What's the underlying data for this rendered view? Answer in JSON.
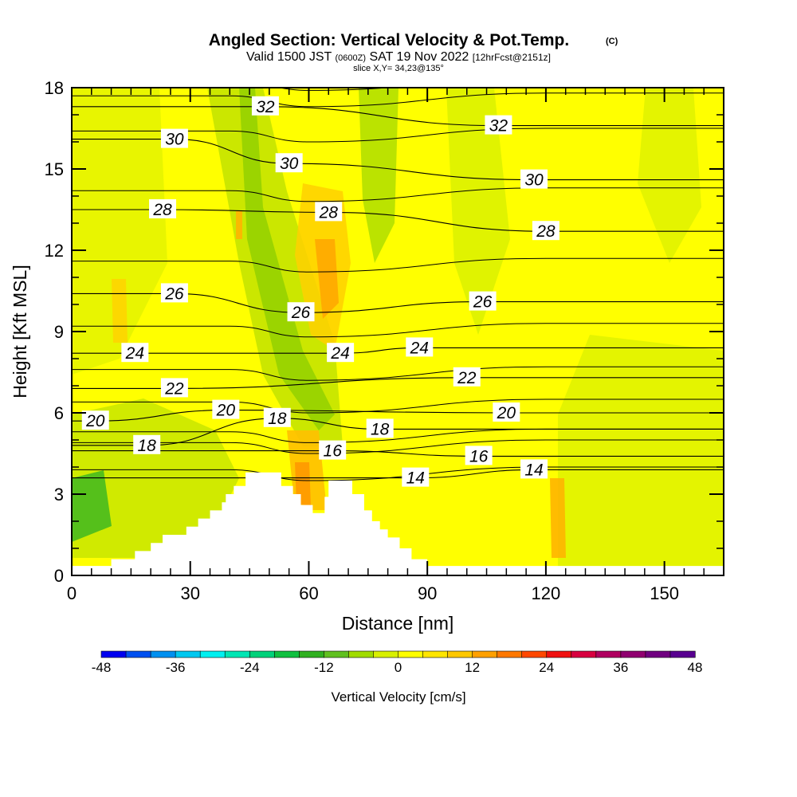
{
  "chart_data": {
    "type": "heatmap",
    "title": "Angled Section: Vertical Velocity & Pot.Temp.",
    "title_mark": "(C)",
    "subtitle_parts": [
      "Valid 1500 JST",
      "(0600Z)",
      "SAT 19 Nov 2022",
      "[12hrFcst@2151z]"
    ],
    "slice_label": "slice X,Y= 34,23@135°",
    "xlabel": "Distance [nm]",
    "ylabel": "Height [Kft MSL]",
    "xlim": [
      0,
      165
    ],
    "ylim": [
      0,
      18
    ],
    "x_ticks": [
      0,
      30,
      60,
      90,
      120,
      150
    ],
    "y_ticks": [
      0,
      3,
      6,
      9,
      12,
      15,
      18
    ],
    "colorbar": {
      "label": "Vertical Velocity [cm/s]",
      "range": [
        -48,
        48
      ],
      "ticks": [
        -48,
        -36,
        -24,
        -12,
        0,
        12,
        24,
        36,
        48
      ],
      "colors": [
        "#0000f0",
        "#0050f0",
        "#0090f0",
        "#00c8f0",
        "#00f0f0",
        "#00e6b4",
        "#00d27a",
        "#10c040",
        "#30b020",
        "#60c020",
        "#a0dc00",
        "#d8f000",
        "#ffff00",
        "#ffe600",
        "#ffc800",
        "#ffa000",
        "#ff7800",
        "#ff4800",
        "#f01010",
        "#d80040",
        "#b00060",
        "#900070",
        "#700080",
        "#580090"
      ]
    },
    "contour_labels": [
      {
        "value": "32",
        "x": 49,
        "y": 17.3
      },
      {
        "value": "32",
        "x": 108,
        "y": 16.6
      },
      {
        "value": "30",
        "x": 26,
        "y": 16.1
      },
      {
        "value": "30",
        "x": 55,
        "y": 15.2
      },
      {
        "value": "30",
        "x": 117,
        "y": 14.6
      },
      {
        "value": "28",
        "x": 23,
        "y": 13.5
      },
      {
        "value": "28",
        "x": 65,
        "y": 13.4
      },
      {
        "value": "28",
        "x": 120,
        "y": 12.7
      },
      {
        "value": "26",
        "x": 26,
        "y": 10.4
      },
      {
        "value": "26",
        "x": 58,
        "y": 9.7
      },
      {
        "value": "26",
        "x": 104,
        "y": 10.1
      },
      {
        "value": "24",
        "x": 16,
        "y": 8.2
      },
      {
        "value": "24",
        "x": 68,
        "y": 8.2
      },
      {
        "value": "24",
        "x": 88,
        "y": 8.4
      },
      {
        "value": "22",
        "x": 26,
        "y": 6.9
      },
      {
        "value": "22",
        "x": 100,
        "y": 7.3
      },
      {
        "value": "20",
        "x": 6,
        "y": 5.7
      },
      {
        "value": "20",
        "x": 39,
        "y": 6.1
      },
      {
        "value": "20",
        "x": 110,
        "y": 6.0
      },
      {
        "value": "18",
        "x": 19,
        "y": 4.8
      },
      {
        "value": "18",
        "x": 52,
        "y": 5.8
      },
      {
        "value": "18",
        "x": 78,
        "y": 5.4
      },
      {
        "value": "16",
        "x": 66,
        "y": 4.6
      },
      {
        "value": "16",
        "x": 103,
        "y": 4.4
      },
      {
        "value": "14",
        "x": 87,
        "y": 3.6
      },
      {
        "value": "14",
        "x": 117,
        "y": 3.9
      }
    ],
    "terrain_profile": [
      [
        10,
        0.6
      ],
      [
        16,
        0.6
      ],
      [
        16,
        0.9
      ],
      [
        20,
        0.9
      ],
      [
        20,
        1.2
      ],
      [
        23,
        1.2
      ],
      [
        23,
        1.5
      ],
      [
        29,
        1.5
      ],
      [
        29,
        1.8
      ],
      [
        32,
        1.8
      ],
      [
        32,
        2.1
      ],
      [
        35,
        2.1
      ],
      [
        35,
        2.4
      ],
      [
        38,
        2.4
      ],
      [
        38,
        2.7
      ],
      [
        39,
        2.7
      ],
      [
        39,
        3.0
      ],
      [
        41,
        3.0
      ],
      [
        41,
        3.3
      ],
      [
        44,
        3.3
      ],
      [
        44,
        3.8
      ],
      [
        53,
        3.8
      ],
      [
        53,
        3.3
      ],
      [
        56,
        3.3
      ],
      [
        56,
        3.0
      ],
      [
        58,
        3.0
      ],
      [
        58,
        2.6
      ],
      [
        61,
        2.6
      ],
      [
        61,
        2.3
      ],
      [
        64,
        2.3
      ],
      [
        64,
        2.9
      ],
      [
        65,
        2.9
      ],
      [
        65,
        3.5
      ],
      [
        71,
        3.5
      ],
      [
        71,
        3.0
      ],
      [
        74,
        3.0
      ],
      [
        74,
        2.4
      ],
      [
        76,
        2.4
      ],
      [
        76,
        2.0
      ],
      [
        78,
        2.0
      ],
      [
        78,
        1.7
      ],
      [
        80,
        1.7
      ],
      [
        80,
        1.4
      ],
      [
        83,
        1.4
      ],
      [
        83,
        1.0
      ],
      [
        86,
        1.0
      ],
      [
        86,
        0.6
      ],
      [
        90,
        0.6
      ],
      [
        90,
        0.35
      ],
      [
        165,
        0.35
      ]
    ]
  }
}
